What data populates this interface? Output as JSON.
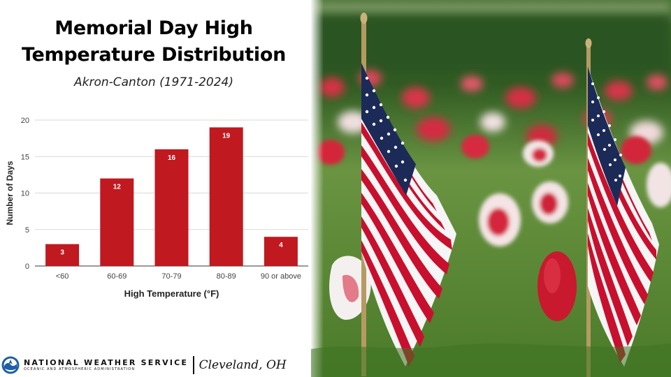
{
  "header": {
    "title_line1": "Memorial Day High",
    "title_line2": "Temperature Distribution",
    "subtitle": "Akron-Canton (1971-2024)"
  },
  "chart_data": {
    "type": "bar",
    "categories": [
      "<60",
      "60-69",
      "70-79",
      "80-89",
      "90 or above"
    ],
    "values": [
      3,
      12,
      16,
      19,
      4
    ],
    "xlabel": "High Temperature (°F)",
    "ylabel": "Number of Days",
    "ylim": [
      0,
      20
    ],
    "yticks": [
      0,
      5,
      10,
      15,
      20
    ],
    "grid": true,
    "bar_color": "#c0191f",
    "data_labels": true,
    "legend": "none"
  },
  "footer": {
    "agency_name": "NATIONAL WEATHER SERVICE",
    "agency_sub": "OCEANIC AND ATMOSPHERIC ADMINISTRATION",
    "office": "Cleveland, OH"
  },
  "photo": {
    "flag_red": "#c8102e",
    "flag_blue": "#1c2a58",
    "grass_color": "#4f8a2e"
  }
}
